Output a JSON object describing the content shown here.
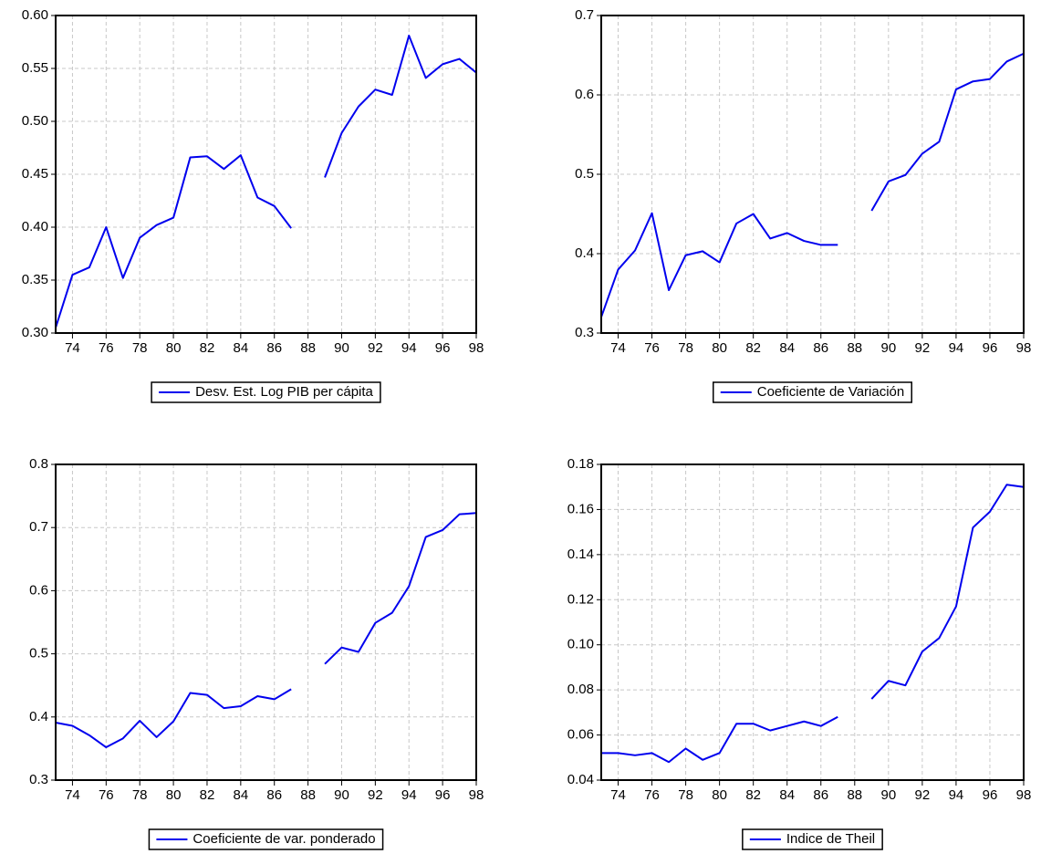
{
  "chart_data": [
    {
      "type": "line",
      "x": [
        73,
        74,
        75,
        76,
        77,
        78,
        79,
        80,
        81,
        82,
        83,
        84,
        85,
        86,
        87,
        88,
        89,
        90,
        91,
        92,
        93,
        94,
        95,
        96,
        97,
        98
      ],
      "series": [
        {
          "name": "Desv. Est. Log PIB per cápita",
          "color": "#0000ee",
          "values": [
            0.305,
            0.355,
            0.362,
            0.4,
            0.352,
            0.39,
            0.402,
            0.409,
            0.466,
            0.467,
            0.455,
            0.468,
            0.428,
            0.42,
            0.399,
            null,
            0.447,
            0.489,
            0.514,
            0.53,
            0.525,
            0.581,
            0.541,
            0.554,
            0.559,
            0.546
          ]
        }
      ],
      "xlim": [
        73,
        98
      ],
      "xticks": [
        74,
        76,
        78,
        80,
        82,
        84,
        86,
        88,
        90,
        92,
        94,
        96,
        98
      ],
      "ylim": [
        0.3,
        0.6
      ],
      "yticks": [
        {
          "value": 0.3,
          "label": "0.30"
        },
        0.35,
        {
          "value": 0.4,
          "label": "0.40"
        },
        0.45,
        {
          "value": 0.5,
          "label": "0.50"
        },
        0.55,
        {
          "value": 0.6,
          "label": "0.60"
        }
      ],
      "grid": true
    },
    {
      "type": "line",
      "x": [
        73,
        74,
        75,
        76,
        77,
        78,
        79,
        80,
        81,
        82,
        83,
        84,
        85,
        86,
        87,
        88,
        89,
        90,
        91,
        92,
        93,
        94,
        95,
        96,
        97,
        98
      ],
      "series": [
        {
          "name": "Coeficiente de Variación",
          "color": "#0000ee",
          "values": [
            0.32,
            0.38,
            0.404,
            0.451,
            0.354,
            0.398,
            0.403,
            0.389,
            0.438,
            0.45,
            0.419,
            0.426,
            0.416,
            0.411,
            0.411,
            null,
            0.454,
            0.491,
            0.499,
            0.526,
            0.541,
            0.607,
            0.617,
            0.62,
            0.642,
            0.652
          ]
        }
      ],
      "xlim": [
        73,
        98
      ],
      "xticks": [
        74,
        76,
        78,
        80,
        82,
        84,
        86,
        88,
        90,
        92,
        94,
        96,
        98
      ],
      "ylim": [
        0.3,
        0.7
      ],
      "yticks": [
        0.3,
        0.4,
        0.5,
        0.6,
        0.7
      ],
      "grid": true
    },
    {
      "type": "line",
      "x": [
        73,
        74,
        75,
        76,
        77,
        78,
        79,
        80,
        81,
        82,
        83,
        84,
        85,
        86,
        87,
        88,
        89,
        90,
        91,
        92,
        93,
        94,
        95,
        96,
        97,
        98
      ],
      "series": [
        {
          "name": "Coeficiente de var. ponderado",
          "color": "#0000ee",
          "values": [
            0.391,
            0.386,
            0.371,
            0.352,
            0.366,
            0.394,
            0.368,
            0.393,
            0.438,
            0.435,
            0.414,
            0.417,
            0.433,
            0.428,
            0.444,
            null,
            0.484,
            0.51,
            0.503,
            0.549,
            0.565,
            0.607,
            0.685,
            0.696,
            0.721,
            0.723
          ]
        }
      ],
      "xlim": [
        73,
        98
      ],
      "xticks": [
        74,
        76,
        78,
        80,
        82,
        84,
        86,
        88,
        90,
        92,
        94,
        96,
        98
      ],
      "ylim": [
        0.3,
        0.8
      ],
      "yticks": [
        0.3,
        0.4,
        0.5,
        0.6,
        0.7,
        0.8
      ],
      "grid": true
    },
    {
      "type": "line",
      "x": [
        73,
        74,
        75,
        76,
        77,
        78,
        79,
        80,
        81,
        82,
        83,
        84,
        85,
        86,
        87,
        88,
        89,
        90,
        91,
        92,
        93,
        94,
        95,
        96,
        97,
        98
      ],
      "series": [
        {
          "name": "Indice de Theil",
          "color": "#0000ee",
          "values": [
            0.052,
            0.052,
            0.051,
            0.052,
            0.048,
            0.054,
            0.049,
            0.052,
            0.065,
            0.065,
            0.062,
            0.064,
            0.066,
            0.064,
            0.068,
            null,
            0.076,
            0.084,
            0.082,
            0.097,
            0.103,
            0.117,
            0.152,
            0.159,
            0.171,
            0.17
          ]
        }
      ],
      "xlim": [
        73,
        98
      ],
      "xticks": [
        74,
        76,
        78,
        80,
        82,
        84,
        86,
        88,
        90,
        92,
        94,
        96,
        98
      ],
      "ylim": [
        0.04,
        0.18
      ],
      "yticks": [
        0.04,
        0.06,
        0.08,
        {
          "value": 0.1,
          "label": "0.10"
        },
        0.12,
        0.14,
        0.16,
        0.18
      ],
      "grid": true
    }
  ]
}
